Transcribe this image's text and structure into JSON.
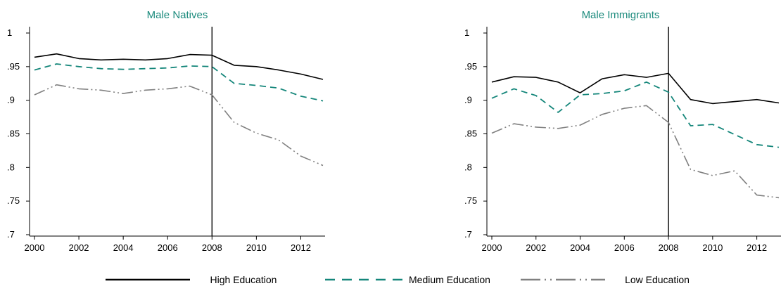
{
  "colors": {
    "high": "#000000",
    "medium": "#14867a",
    "low": "#808080",
    "title": "#1a8a7c",
    "vline": "#000000"
  },
  "legend": {
    "items": [
      {
        "label": "High Education",
        "series": "high",
        "dash": "solid"
      },
      {
        "label": "Medium Education",
        "series": "medium",
        "dash": "dashed"
      },
      {
        "label": "Low Education",
        "series": "low",
        "dash": "dashdot"
      }
    ]
  },
  "chart_data": [
    {
      "type": "line",
      "title": "Male Natives",
      "x": [
        2000,
        2001,
        2002,
        2003,
        2004,
        2005,
        2006,
        2007,
        2008,
        2009,
        2010,
        2011,
        2012,
        2013
      ],
      "xlim": [
        2000,
        2013
      ],
      "xticks": [
        "2000",
        "2002",
        "2004",
        "2006",
        "2008",
        "2010",
        "2012"
      ],
      "ylim": [
        0.7,
        1.0
      ],
      "yticks": [
        "1",
        ".95",
        ".9",
        ".85",
        ".8",
        ".75",
        ".7"
      ],
      "vline": 2008,
      "series": [
        {
          "name": "High Education",
          "values": [
            0.964,
            0.969,
            0.962,
            0.96,
            0.961,
            0.96,
            0.962,
            0.968,
            0.967,
            0.952,
            0.95,
            0.945,
            0.939,
            0.931
          ]
        },
        {
          "name": "Medium Education",
          "values": [
            0.945,
            0.954,
            0.95,
            0.947,
            0.946,
            0.947,
            0.948,
            0.951,
            0.95,
            0.925,
            0.922,
            0.918,
            0.906,
            0.899
          ]
        },
        {
          "name": "Low Education",
          "values": [
            0.908,
            0.923,
            0.917,
            0.915,
            0.91,
            0.915,
            0.917,
            0.921,
            0.908,
            0.867,
            0.851,
            0.841,
            0.817,
            0.803
          ]
        }
      ]
    },
    {
      "type": "line",
      "title": "Male Immigrants",
      "x": [
        2000,
        2001,
        2002,
        2003,
        2004,
        2005,
        2006,
        2007,
        2008,
        2009,
        2010,
        2011,
        2012,
        2013
      ],
      "xlim": [
        2000,
        2013
      ],
      "xticks": [
        "2000",
        "2002",
        "2004",
        "2006",
        "2008",
        "2010",
        "2012"
      ],
      "ylim": [
        0.7,
        1.0
      ],
      "yticks": [
        "1",
        ".95",
        ".9",
        ".85",
        ".8",
        ".75",
        ".7"
      ],
      "vline": 2008,
      "series": [
        {
          "name": "High Education",
          "values": [
            0.927,
            0.935,
            0.934,
            0.927,
            0.911,
            0.932,
            0.938,
            0.934,
            0.94,
            0.901,
            0.895,
            0.898,
            0.901,
            0.896
          ]
        },
        {
          "name": "Medium Education",
          "values": [
            0.903,
            0.917,
            0.907,
            0.882,
            0.908,
            0.91,
            0.914,
            0.927,
            0.912,
            0.862,
            0.864,
            0.849,
            0.834,
            0.83
          ]
        },
        {
          "name": "Low Education",
          "values": [
            0.851,
            0.865,
            0.86,
            0.858,
            0.863,
            0.879,
            0.888,
            0.892,
            0.867,
            0.797,
            0.788,
            0.795,
            0.759,
            0.755
          ]
        }
      ]
    }
  ]
}
